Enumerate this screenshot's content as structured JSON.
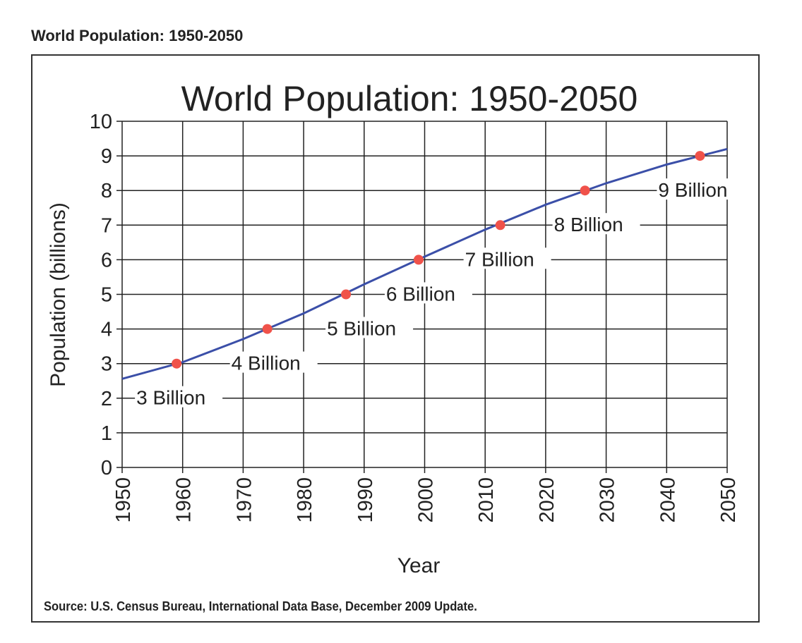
{
  "heading": "World Population: 1950-2050",
  "source": "Source: U.S. Census Bureau, International Data Base, December 2009 Update.",
  "chart_data": {
    "type": "line",
    "title": "World Population: 1950-2050",
    "xlabel": "Year",
    "ylabel": "Population (billions)",
    "xlim": [
      1950,
      2050
    ],
    "ylim": [
      0,
      10
    ],
    "grid": true,
    "x_ticks": [
      "1950",
      "1960",
      "1970",
      "1980",
      "1990",
      "2000",
      "2010",
      "2020",
      "2030",
      "2040",
      "2050"
    ],
    "y_ticks": [
      "0",
      "1",
      "2",
      "3",
      "4",
      "5",
      "6",
      "7",
      "8",
      "9",
      "10"
    ],
    "series": [
      {
        "x": [
          1950,
          1960,
          1970,
          1980,
          1990,
          2000,
          2010,
          2020,
          2030,
          2040,
          2050
        ],
        "y": [
          2.56,
          3.04,
          3.71,
          4.45,
          5.29,
          6.09,
          6.87,
          7.59,
          8.21,
          8.75,
          9.2
        ],
        "color": "#3b4fa8"
      }
    ],
    "milestones": [
      {
        "year": 1959,
        "value": 3,
        "label": "3 Billion"
      },
      {
        "year": 1974,
        "value": 4,
        "label": "4 Billion"
      },
      {
        "year": 1987,
        "value": 5,
        "label": "5 Billion"
      },
      {
        "year": 1999,
        "value": 6,
        "label": "6 Billion"
      },
      {
        "year": 2012.5,
        "value": 7,
        "label": "7 Billion"
      },
      {
        "year": 2026.5,
        "value": 8,
        "label": "8 Billion"
      },
      {
        "year": 2045.5,
        "value": 9,
        "label": "9 Billion"
      }
    ],
    "marker_color": "#f0524a"
  }
}
